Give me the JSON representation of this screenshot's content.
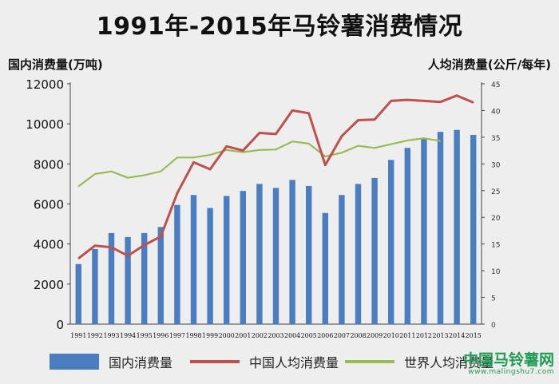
{
  "title": "1991年-2015年马铃薯消费情况",
  "left_axis_label": "国内消费量(万吨)",
  "right_axis_label": "人均消费量(公斤/每年)",
  "watermark": {
    "main": "中国马铃薯网",
    "url": "www.malingshu7.com"
  },
  "chart_data": {
    "type": "bar",
    "title": "1991年-2015年马铃薯消费情况",
    "xlabel": "",
    "categories": [
      "1991",
      "1992",
      "1993",
      "1994",
      "1995",
      "1996",
      "1997",
      "1998",
      "1999",
      "2000",
      "2001",
      "2002",
      "2003",
      "2004",
      "2005",
      "2006",
      "2007",
      "2008",
      "2009",
      "2010",
      "2011",
      "2012",
      "2013",
      "2014",
      "2015"
    ],
    "y_left": {
      "label": "国内消费量(万吨)",
      "lim": [
        0,
        12000
      ],
      "ticks": [
        0,
        2000,
        4000,
        6000,
        8000,
        10000,
        12000
      ]
    },
    "y_right": {
      "label": "人均消费量(公斤/每年)",
      "lim": [
        0,
        45
      ],
      "ticks": [
        0,
        5,
        10,
        15,
        20,
        25,
        30,
        35,
        40,
        45
      ]
    },
    "series": [
      {
        "name": "国内消费量",
        "type": "bar",
        "axis": "left",
        "color": "#4a7ec1",
        "values": [
          3000,
          3750,
          4550,
          4350,
          4550,
          4850,
          5950,
          6450,
          5800,
          6400,
          6650,
          7000,
          6800,
          7200,
          6900,
          5550,
          6450,
          7000,
          7300,
          8200,
          8800,
          9250,
          9600,
          9700,
          9450
        ]
      },
      {
        "name": "中国人均消费量",
        "type": "line",
        "axis": "right",
        "color": "#c0504d",
        "values": [
          12.3,
          14.7,
          14.4,
          12.8,
          14.8,
          16.4,
          24.5,
          30.3,
          29.0,
          33.3,
          32.5,
          35.8,
          35.6,
          40.0,
          39.5,
          29.8,
          35.2,
          38.2,
          38.3,
          41.8,
          42.0,
          41.8,
          41.6,
          42.8,
          41.5
        ]
      },
      {
        "name": "世界人均消费量",
        "type": "line",
        "axis": "right",
        "color": "#9bbb59",
        "values": [
          25.8,
          28.1,
          28.6,
          27.4,
          27.9,
          28.6,
          31.2,
          31.2,
          31.7,
          32.6,
          32.2,
          32.6,
          32.7,
          34.2,
          33.8,
          31.4,
          32.1,
          33.4,
          33.0,
          33.7,
          34.4,
          34.8,
          34.3,
          null,
          null
        ]
      }
    ],
    "legend": [
      "国内消费量",
      "中国人均消费量",
      "世界人均消费量"
    ],
    "legend_position": "bottom",
    "grid": false
  }
}
